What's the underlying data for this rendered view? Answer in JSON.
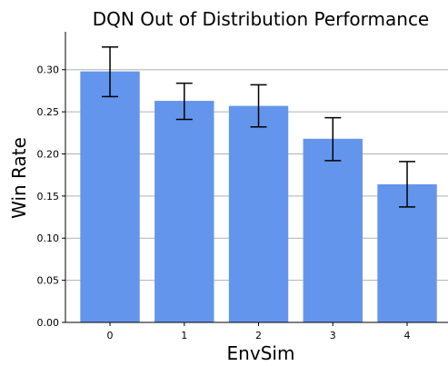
{
  "chart_data": {
    "type": "bar",
    "title": "DQN Out of Distribution Performance",
    "xlabel": "EnvSim",
    "ylabel": "Win Rate",
    "categories": [
      "0",
      "1",
      "2",
      "3",
      "4"
    ],
    "values": [
      0.298,
      0.263,
      0.257,
      0.218,
      0.164
    ],
    "error_low": [
      0.268,
      0.241,
      0.232,
      0.192,
      0.137
    ],
    "error_high": [
      0.327,
      0.284,
      0.282,
      0.243,
      0.191
    ],
    "ylim": [
      0,
      0.345
    ],
    "yticks": [
      0.0,
      0.05,
      0.1,
      0.15,
      0.2,
      0.25,
      0.3
    ],
    "ytick_labels": [
      "0.00",
      "0.05",
      "0.10",
      "0.15",
      "0.20",
      "0.25",
      "0.30"
    ],
    "grid": "horizontal",
    "bar_color": "#6495ED",
    "grid_color": "#b0b0b0",
    "errorbar_color": "#000000"
  }
}
